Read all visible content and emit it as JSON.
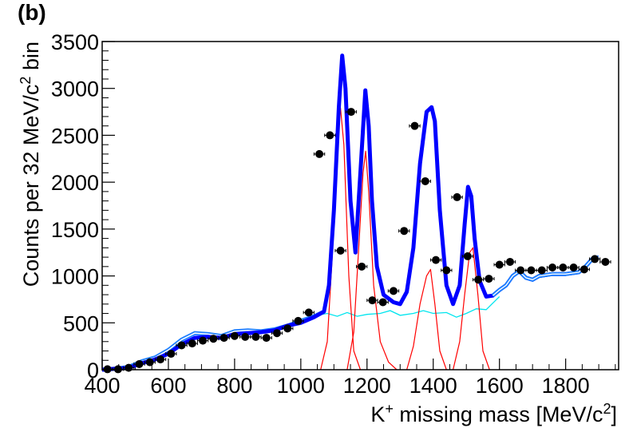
{
  "panel_label": "(b)",
  "chart_data": {
    "type": "line",
    "xlabel": "K+ missing mass [MeV/c2]",
    "ylabel": "Counts per 32 MeV/c2 bin",
    "xlim": [
      400,
      1960
    ],
    "ylim": [
      0,
      3500
    ],
    "x_ticks": [
      400,
      600,
      800,
      1000,
      1200,
      1400,
      1600,
      1800
    ],
    "y_ticks": [
      0,
      500,
      1000,
      1500,
      2000,
      2500,
      3000,
      3500
    ],
    "grid": false,
    "colors": {
      "data": "#000000",
      "total_fit": "#0000ff",
      "components": "#ff0000",
      "background": "#00e5ee",
      "model_band": "#1e7fff"
    },
    "data_points": {
      "x": [
        416,
        448,
        480,
        512,
        544,
        576,
        608,
        640,
        672,
        704,
        736,
        768,
        800,
        832,
        864,
        896,
        928,
        960,
        992,
        1024,
        1056,
        1088,
        1120,
        1152,
        1184,
        1216,
        1248,
        1280,
        1312,
        1344,
        1376,
        1408,
        1440,
        1472,
        1504,
        1536,
        1568,
        1600,
        1632,
        1664,
        1696,
        1728,
        1760,
        1792,
        1824,
        1856,
        1888,
        1920
      ],
      "y": [
        5,
        5,
        20,
        60,
        80,
        110,
        170,
        260,
        280,
        310,
        330,
        340,
        360,
        350,
        350,
        340,
        390,
        440,
        520,
        610,
        2300,
        2500,
        1270,
        2750,
        1100,
        740,
        720,
        840,
        1480,
        2600,
        2010,
        1170,
        1060,
        1840,
        1210,
        960,
        970,
        1120,
        1150,
        1060,
        1060,
        1060,
        1090,
        1090,
        1090,
        1070,
        1180,
        1150
      ]
    },
    "total_fit": {
      "x": [
        400,
        440,
        480,
        520,
        560,
        600,
        640,
        680,
        720,
        760,
        800,
        840,
        880,
        920,
        960,
        1000,
        1040,
        1070,
        1085,
        1100,
        1115,
        1125,
        1135,
        1150,
        1165,
        1180,
        1195,
        1205,
        1215,
        1230,
        1250,
        1280,
        1300,
        1320,
        1340,
        1360,
        1380,
        1395,
        1405,
        1420,
        1440,
        1460,
        1480,
        1495,
        1505,
        1515,
        1525,
        1540,
        1560,
        1580,
        1600,
        1620,
        1640,
        1660,
        1680,
        1700,
        1720,
        1760,
        1800,
        1840,
        1860,
        1880,
        1900
      ],
      "y": [
        0,
        10,
        20,
        70,
        110,
        170,
        270,
        340,
        350,
        340,
        380,
        390,
        400,
        420,
        470,
        500,
        560,
        620,
        900,
        1700,
        2800,
        3350,
        3000,
        1800,
        1250,
        2100,
        2980,
        2600,
        1800,
        1100,
        800,
        720,
        700,
        830,
        1300,
        2200,
        2750,
        2800,
        2650,
        1700,
        900,
        700,
        900,
        1550,
        1950,
        1850,
        1400,
        950,
        780,
        790,
        850,
        900,
        1000,
        1050,
        980,
        960,
        1000,
        1020,
        1020,
        1040,
        1100,
        1180,
        1200
      ]
    },
    "model_band": {
      "x": [
        400,
        440,
        480,
        520,
        560,
        600,
        640,
        680,
        720,
        760,
        800,
        840,
        880,
        920,
        960,
        1000,
        1040,
        1070
      ],
      "y": [
        0,
        10,
        30,
        90,
        130,
        210,
        320,
        390,
        380,
        360,
        410,
        420,
        410,
        430,
        470,
        520,
        570,
        620
      ]
    },
    "background": {
      "x": [
        1050,
        1080,
        1110,
        1140,
        1170,
        1200,
        1240,
        1270,
        1300,
        1340,
        1370,
        1400,
        1440,
        1470,
        1500,
        1530,
        1560,
        1600
      ],
      "y": [
        580,
        600,
        570,
        610,
        570,
        590,
        600,
        630,
        580,
        600,
        630,
        600,
        610,
        560,
        600,
        650,
        640,
        780
      ]
    },
    "components": [
      {
        "x": [
          1060,
          1080,
          1095,
          1110,
          1120,
          1130,
          1145,
          1160,
          1180
        ],
        "y": [
          0,
          300,
          1200,
          2400,
          2790,
          2400,
          1000,
          200,
          0
        ]
      },
      {
        "x": [
          1140,
          1160,
          1175,
          1188,
          1196,
          1205,
          1220,
          1240,
          1265,
          1290
        ],
        "y": [
          0,
          400,
          1300,
          2100,
          2330,
          1900,
          900,
          300,
          80,
          0
        ]
      },
      {
        "x": [
          1320,
          1340,
          1360,
          1380,
          1392,
          1405,
          1420,
          1440
        ],
        "y": [
          0,
          250,
          700,
          1000,
          1070,
          700,
          200,
          0
        ]
      },
      {
        "x": [
          1460,
          1480,
          1495,
          1510,
          1520,
          1535,
          1550,
          1570
        ],
        "y": [
          0,
          300,
          800,
          1250,
          1300,
          800,
          200,
          0
        ]
      }
    ]
  }
}
